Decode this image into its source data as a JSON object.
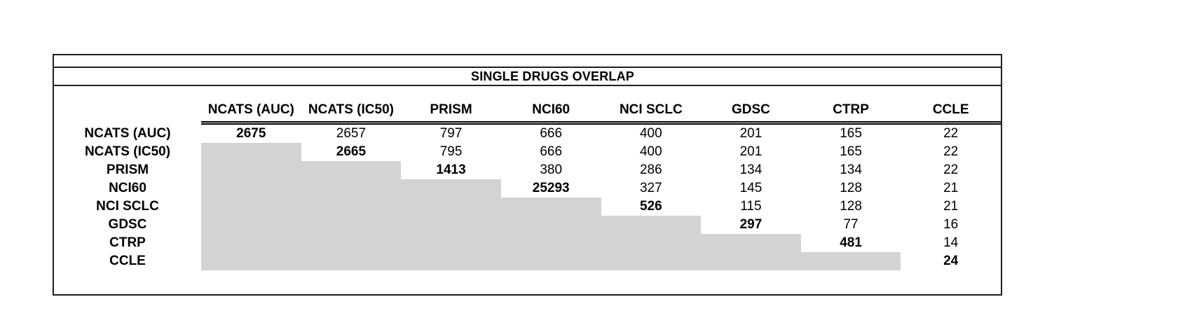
{
  "chart_data": {
    "type": "table",
    "title": "SINGLE DRUGS OVERLAP",
    "columns": [
      "NCATS (AUC)",
      "NCATS (IC50)",
      "PRISM",
      "NCI60",
      "NCI SCLC",
      "GDSC",
      "CTRP",
      "CCLE"
    ],
    "rows": [
      "NCATS (AUC)",
      "NCATS (IC50)",
      "PRISM",
      "NCI60",
      "NCI SCLC",
      "GDSC",
      "CTRP",
      "CCLE"
    ],
    "matrix": [
      [
        2675,
        2657,
        797,
        666,
        400,
        201,
        165,
        22
      ],
      [
        null,
        2665,
        795,
        666,
        400,
        201,
        165,
        22
      ],
      [
        null,
        null,
        1413,
        380,
        286,
        134,
        134,
        22
      ],
      [
        null,
        null,
        null,
        25293,
        327,
        145,
        128,
        21
      ],
      [
        null,
        null,
        null,
        null,
        526,
        115,
        128,
        21
      ],
      [
        null,
        null,
        null,
        null,
        null,
        297,
        77,
        16
      ],
      [
        null,
        null,
        null,
        null,
        null,
        null,
        481,
        14
      ],
      [
        null,
        null,
        null,
        null,
        null,
        null,
        null,
        24
      ]
    ],
    "notes_layout": "diagonal values bold; lower triangle shaded grey",
    "legend_position": "none",
    "grid": false
  },
  "colors": {
    "shaded_cell": "#d3d3d3",
    "border": "#1f1f1f",
    "text": "#000000",
    "background": "#ffffff"
  }
}
